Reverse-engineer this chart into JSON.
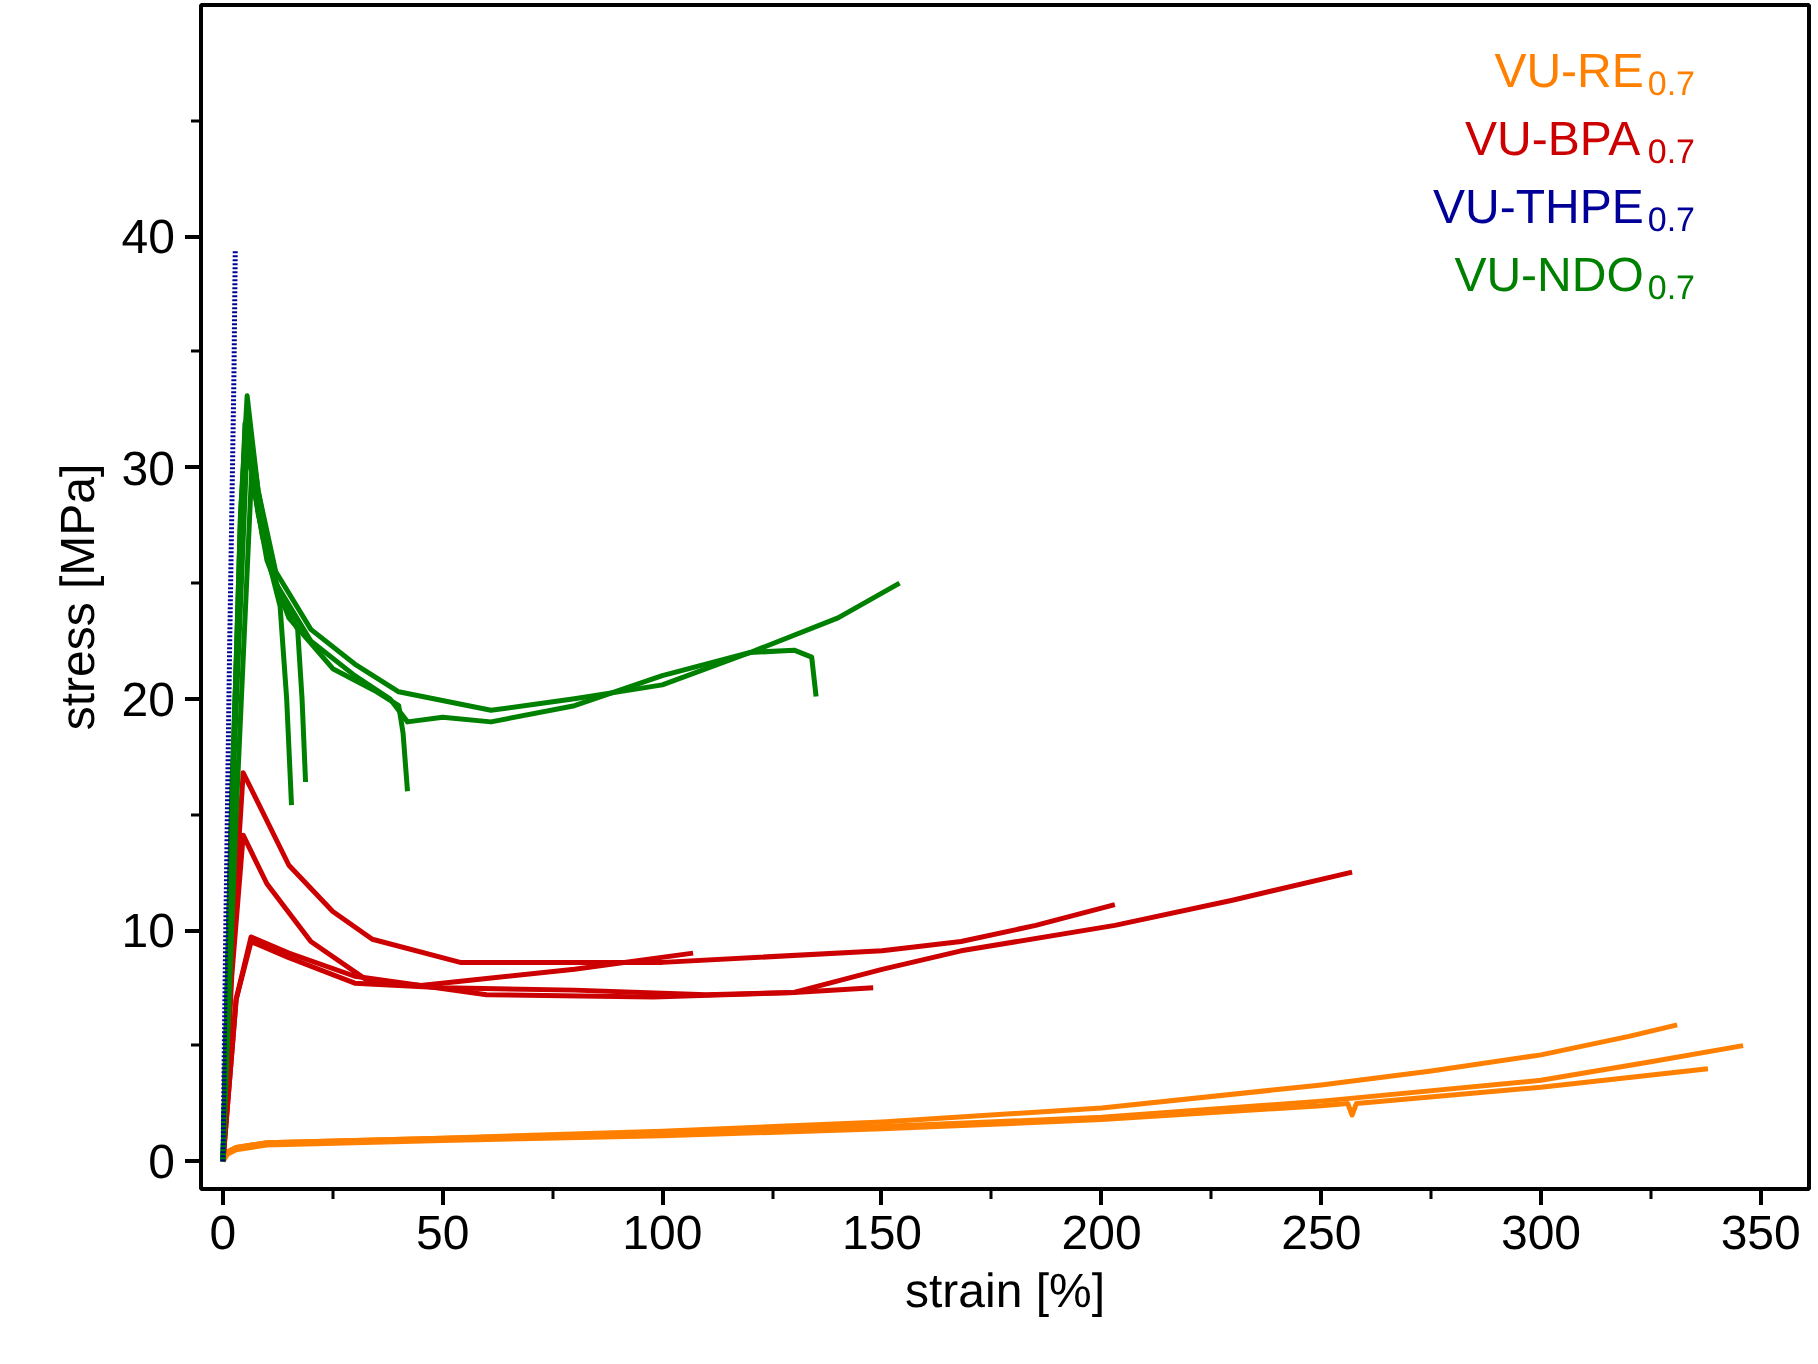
{
  "chart_data": {
    "type": "line",
    "xlabel": "strain [%]",
    "ylabel": "stress [MPa]",
    "xlim": [
      -5,
      361
    ],
    "ylim": [
      -1.2,
      50
    ],
    "xticks": [
      0,
      50,
      100,
      150,
      200,
      250,
      300,
      350
    ],
    "yticks": [
      0,
      10,
      20,
      30,
      40
    ],
    "grid": false,
    "legend": "top right",
    "marker": "none",
    "series": [
      {
        "name": "VU-RE$_{0.7}$",
        "color": "#ff8000",
        "x": [
          0,
          1,
          3,
          10,
          50,
          100,
          150,
          200,
          250,
          275,
          300,
          320,
          331
        ],
        "values": [
          0,
          0.4,
          0.6,
          0.8,
          1.0,
          1.3,
          1.7,
          2.3,
          3.3,
          3.9,
          4.6,
          5.4,
          5.9
        ]
      },
      {
        "color": "#ff8000",
        "x": [
          0,
          1,
          3,
          10,
          50,
          100,
          150,
          200,
          250,
          300,
          325,
          346
        ],
        "values": [
          0,
          0.4,
          0.6,
          0.8,
          1.0,
          1.2,
          1.5,
          1.9,
          2.6,
          3.5,
          4.3,
          5.0
        ]
      },
      {
        "color": "#ff8000",
        "x": [
          0,
          1,
          3,
          10,
          50,
          100,
          150,
          200,
          250,
          256,
          257,
          258,
          300,
          338
        ],
        "values": [
          0,
          0.3,
          0.5,
          0.7,
          0.9,
          1.1,
          1.4,
          1.8,
          2.4,
          2.5,
          2.0,
          2.5,
          3.2,
          4.0
        ]
      },
      {
        "name": "VU-BPA$_{0.7}$",
        "color": "#cc0000",
        "x": [
          0,
          2,
          4.6,
          8,
          15,
          25,
          34,
          54,
          80,
          100,
          150,
          168,
          185,
          203
        ],
        "values": [
          0,
          9,
          16.8,
          15.5,
          12.8,
          10.8,
          9.6,
          8.6,
          8.6,
          8.6,
          9.1,
          9.5,
          10.2,
          11.1
        ]
      },
      {
        "color": "#cc0000",
        "x": [
          0,
          2,
          4.6,
          10,
          20,
          33,
          45,
          60,
          80,
          107
        ],
        "values": [
          0,
          8,
          14.1,
          12,
          9.5,
          7.8,
          7.6,
          7.9,
          8.3,
          9.0
        ]
      },
      {
        "color": "#cc0000",
        "x": [
          0,
          3,
          6.4,
          15,
          30,
          60,
          98,
          130,
          150,
          168,
          203,
          230,
          257
        ],
        "values": [
          0,
          7,
          9.7,
          9.0,
          8.0,
          7.2,
          7.1,
          7.3,
          8.3,
          9.1,
          10.2,
          11.3,
          12.5
        ]
      },
      {
        "color": "#cc0000",
        "x": [
          0,
          3,
          6.4,
          15,
          30,
          50,
          80,
          110,
          130,
          148
        ],
        "values": [
          0,
          7,
          9.5,
          8.8,
          7.7,
          7.5,
          7.4,
          7.2,
          7.3,
          7.5
        ]
      },
      {
        "name": "VU-THPE$_{0.7}$",
        "color": "#000099",
        "line_style": "dotted",
        "x": [
          0,
          0.5,
          1,
          1.5,
          2,
          2.5,
          2.8
        ],
        "values": [
          0,
          8,
          15,
          22,
          28,
          34,
          39.4
        ]
      },
      {
        "name": "VU-NDO$_{0.7}$",
        "color": "#008000",
        "x": [
          0,
          2,
          4,
          5.5,
          8,
          12,
          20,
          30,
          40,
          61,
          80,
          100,
          120,
          130,
          134,
          135
        ],
        "values": [
          0,
          15,
          28,
          33.1,
          29,
          25.5,
          23,
          21.5,
          20.3,
          19.5,
          20.0,
          20.6,
          22.0,
          22.1,
          21.8,
          20.1
        ]
      },
      {
        "color": "#008000",
        "x": [
          0,
          2,
          4,
          5.5,
          8,
          12,
          20,
          30,
          38,
          42,
          50,
          61,
          80,
          100,
          120,
          140,
          154
        ],
        "values": [
          0,
          15,
          28,
          32.5,
          29,
          25,
          22.5,
          21,
          20,
          19,
          19.2,
          19.0,
          19.7,
          21.0,
          22.0,
          23.5,
          25.0
        ]
      },
      {
        "color": "#008000",
        "x": [
          0,
          3,
          6.5,
          10,
          15,
          25,
          35,
          40,
          41,
          42
        ],
        "values": [
          0,
          15,
          29.7,
          26,
          23.5,
          21.3,
          20.3,
          19.7,
          18.5,
          16.0
        ]
      },
      {
        "color": "#008000",
        "x": [
          0,
          2,
          5,
          8,
          11,
          13,
          14.5,
          15.6
        ],
        "values": [
          0,
          16,
          31.9,
          28,
          25.5,
          24,
          20,
          15.4
        ]
      },
      {
        "color": "#008000",
        "x": [
          0,
          2,
          5.5,
          9,
          13,
          17,
          18,
          18.8
        ],
        "values": [
          0,
          15,
          31.0,
          27,
          24.5,
          23,
          20,
          16.4
        ]
      }
    ]
  }
}
